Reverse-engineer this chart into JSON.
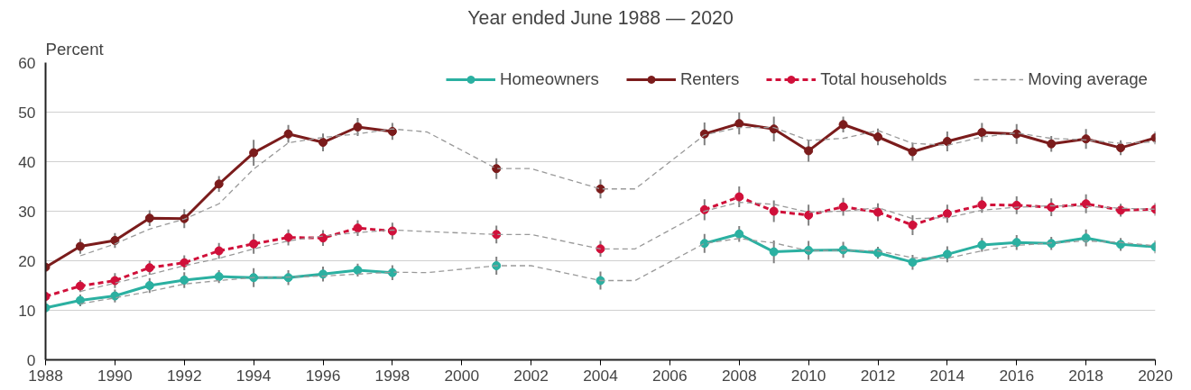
{
  "chart_data": {
    "type": "line",
    "title": "Year ended June 1988 — 2020",
    "ylabel": "Percent",
    "x": [
      1988,
      1989,
      1990,
      1991,
      1992,
      1993,
      1994,
      1995,
      1996,
      1997,
      1998,
      1999,
      2000,
      2001,
      2002,
      2003,
      2004,
      2005,
      2006,
      2007,
      2008,
      2009,
      2010,
      2011,
      2012,
      2013,
      2014,
      2015,
      2016,
      2017,
      2018,
      2019,
      2020
    ],
    "xlim": [
      1988,
      2020
    ],
    "xticks": [
      1988,
      1990,
      1992,
      1994,
      1996,
      1998,
      2000,
      2002,
      2004,
      2006,
      2008,
      2010,
      2012,
      2014,
      2016,
      2018,
      2020
    ],
    "ylim": [
      0,
      60
    ],
    "yticks": [
      0,
      10,
      20,
      30,
      40,
      50,
      60
    ],
    "grid": "y",
    "legend": "top right",
    "marker": "circle",
    "line_style": "solid",
    "series": [
      {
        "name": "Homeowners",
        "color": "#2bb0a1",
        "values": [
          10.5,
          12.0,
          12.9,
          15.0,
          16.1,
          16.8,
          16.6,
          16.6,
          17.3,
          18.1,
          17.6,
          null,
          null,
          19.0,
          null,
          null,
          16.0,
          null,
          null,
          23.5,
          25.4,
          21.8,
          22.1,
          22.2,
          21.6,
          19.7,
          21.3,
          23.2,
          23.7,
          23.5,
          24.6,
          23.3,
          22.8
        ],
        "errors": [
          0.8,
          1.2,
          1.3,
          1.5,
          1.6,
          1.3,
          1.9,
          1.5,
          1.5,
          1.3,
          1.5,
          null,
          null,
          1.8,
          null,
          null,
          1.8,
          null,
          null,
          1.9,
          1.6,
          2.3,
          1.9,
          1.6,
          1.2,
          1.5,
          1.6,
          1.4,
          1.5,
          1.3,
          1.7,
          1.3,
          1.3
        ]
      },
      {
        "name": "Renters",
        "color": "#7b1c1c",
        "values": [
          18.7,
          22.9,
          24.1,
          28.6,
          28.5,
          35.5,
          41.8,
          45.6,
          43.9,
          47.0,
          46.1,
          null,
          null,
          38.6,
          null,
          null,
          34.5,
          null,
          null,
          45.6,
          47.7,
          46.6,
          42.2,
          47.5,
          45.0,
          42.0,
          44.1,
          45.9,
          45.6,
          43.6,
          44.6,
          42.8,
          44.8
        ],
        "errors": [
          0.8,
          1.5,
          1.5,
          1.6,
          1.9,
          1.6,
          2.6,
          1.8,
          1.8,
          1.8,
          1.7,
          null,
          null,
          2.1,
          null,
          null,
          1.9,
          null,
          null,
          2.3,
          2.2,
          2.5,
          2.2,
          1.6,
          1.7,
          1.8,
          2.0,
          1.9,
          2.0,
          1.6,
          2.0,
          1.5,
          1.3
        ]
      },
      {
        "name": "Total households",
        "color": "#d0103a",
        "values": [
          12.8,
          14.9,
          16.0,
          18.6,
          19.6,
          22.0,
          23.4,
          24.7,
          24.6,
          26.6,
          26.0,
          null,
          null,
          25.3,
          null,
          null,
          22.4,
          null,
          null,
          30.3,
          32.9,
          30.0,
          29.2,
          30.9,
          29.8,
          27.2,
          29.5,
          31.3,
          31.2,
          30.8,
          31.5,
          30.2,
          30.4
        ],
        "errors": [
          0.8,
          1.2,
          1.5,
          1.4,
          1.5,
          1.6,
          2.0,
          1.6,
          1.6,
          1.6,
          1.7,
          null,
          null,
          1.8,
          null,
          null,
          1.6,
          null,
          null,
          2.1,
          2.1,
          2.2,
          2.1,
          1.8,
          1.8,
          2.0,
          1.8,
          1.6,
          1.8,
          1.8,
          1.9,
          1.3,
          1.3
        ],
        "line_style": "dashed"
      },
      {
        "name": "Moving average",
        "color": "#999999",
        "marker": "none",
        "line_style": "dashed",
        "x": [
          1989,
          1990,
          1991,
          1992,
          1993,
          1994,
          1995,
          1996,
          1997,
          1998,
          1999,
          2001,
          2002,
          2004,
          2005,
          2007,
          2008,
          2009,
          2010,
          2011,
          2012,
          2013,
          2014,
          2015,
          2016,
          2017,
          2018,
          2019,
          2020
        ],
        "values": [
          11.3,
          12.5,
          13.8,
          15.3,
          16.0,
          16.6,
          16.7,
          16.9,
          17.3,
          17.7,
          17.6,
          19.0,
          19.0,
          16.0,
          16.0,
          23.5,
          24.5,
          23.6,
          22.0,
          22.1,
          22.0,
          20.6,
          20.5,
          22.0,
          23.1,
          23.6,
          24.0,
          23.7,
          23.0
        ]
      },
      {
        "color": "#999999",
        "marker": "none",
        "line_style": "dashed",
        "x": [
          1989,
          1990,
          1991,
          1992,
          1993,
          1994,
          1995,
          1996,
          1997,
          1998,
          1999,
          2001,
          2002,
          2004,
          2005,
          2007,
          2008,
          2009,
          2010,
          2011,
          2012,
          2013,
          2014,
          2015,
          2016,
          2017,
          2018,
          2019,
          2020
        ],
        "values": [
          21.0,
          23.4,
          26.4,
          28.4,
          31.5,
          38.5,
          43.8,
          44.9,
          45.6,
          46.6,
          46.0,
          38.6,
          38.6,
          34.5,
          34.5,
          45.4,
          46.9,
          46.9,
          44.3,
          44.7,
          46.3,
          43.7,
          43.3,
          45.0,
          45.8,
          44.7,
          44.4,
          43.7,
          44.0
        ]
      },
      {
        "color": "#999999",
        "marker": "none",
        "line_style": "dashed",
        "x": [
          1989,
          1990,
          1991,
          1992,
          1993,
          1994,
          1995,
          1996,
          1997,
          1998,
          1999,
          2001,
          2002,
          2004,
          2005,
          2007,
          2008,
          2009,
          2010,
          2011,
          2012,
          2013,
          2014,
          2015,
          2016,
          2017,
          2018,
          2019,
          2020
        ],
        "values": [
          13.8,
          15.5,
          17.2,
          19.0,
          20.5,
          22.4,
          24.0,
          25.0,
          25.7,
          26.2,
          25.9,
          25.3,
          25.3,
          22.4,
          22.4,
          30.0,
          31.8,
          31.4,
          29.8,
          30.0,
          30.7,
          28.5,
          28.7,
          30.2,
          30.8,
          31.1,
          31.0,
          30.6,
          30.4
        ]
      }
    ]
  }
}
